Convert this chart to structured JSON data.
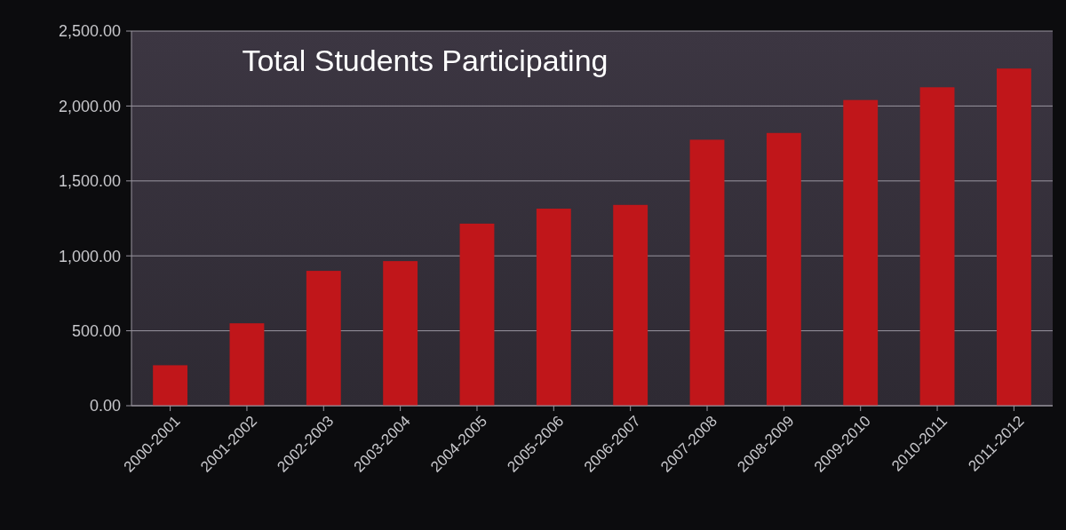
{
  "chart_data": {
    "type": "bar",
    "title": "Total Students Participating",
    "categories": [
      "2000-2001",
      "2001-2002",
      "2002-2003",
      "2003-2004",
      "2004-2005",
      "2005-2006",
      "2006-2007",
      "2007-2008",
      "2008-2009",
      "2009-2010",
      "2010-2011",
      "2011-2012"
    ],
    "values": [
      270,
      550,
      900,
      965,
      1215,
      1315,
      1340,
      1775,
      1820,
      2040,
      2125,
      2250
    ],
    "color": "#c0161a",
    "ylim": [
      0,
      2500
    ],
    "yticks": [
      {
        "value": 0,
        "label": "0.00"
      },
      {
        "value": 500,
        "label": "500.00"
      },
      {
        "value": 1000,
        "label": "1,000.00"
      },
      {
        "value": 1500,
        "label": "1,500.00"
      },
      {
        "value": 2000,
        "label": "2,000.00"
      },
      {
        "value": 2500,
        "label": "2,500.00"
      }
    ],
    "grid": "y"
  }
}
